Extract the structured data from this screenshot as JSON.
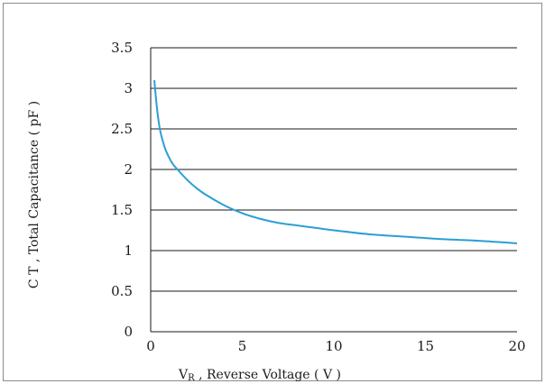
{
  "chart_data": {
    "type": "line",
    "title": "",
    "xlabel": "VR , Reverse Voltage ( V )",
    "xlabel_main": "V",
    "xlabel_sub": "R",
    "xlabel_rest": " , Reverse Voltage ( V )",
    "ylabel": "C T , Total Capacitance ( pF )",
    "xlim": [
      0,
      20
    ],
    "ylim": [
      0,
      3.5
    ],
    "xticks": [
      0,
      5,
      10,
      15,
      20
    ],
    "yticks": [
      0,
      0.5,
      1,
      1.5,
      2,
      2.5,
      3,
      3.5
    ],
    "xtick_labels": [
      "0",
      "5",
      "10",
      "15",
      "20"
    ],
    "ytick_labels": [
      "0",
      "0.5",
      "1",
      "1.5",
      "2",
      "2.5",
      "3",
      "3.5"
    ],
    "grid": "horizontal",
    "legend": "none",
    "series": [
      {
        "color": "#2a9fd6",
        "x": [
          0.2,
          0.3,
          0.4,
          0.5,
          0.6,
          0.8,
          1.0,
          1.2,
          1.5,
          2.0,
          2.5,
          3.0,
          4.0,
          5.0,
          6.0,
          7.0,
          8.0,
          9.0,
          10.0,
          12.0,
          14.0,
          16.0,
          18.0,
          20.0
        ],
        "y": [
          3.1,
          2.85,
          2.65,
          2.5,
          2.4,
          2.25,
          2.15,
          2.07,
          1.99,
          1.87,
          1.77,
          1.69,
          1.56,
          1.46,
          1.39,
          1.34,
          1.31,
          1.28,
          1.25,
          1.2,
          1.17,
          1.14,
          1.12,
          1.09
        ]
      }
    ]
  }
}
